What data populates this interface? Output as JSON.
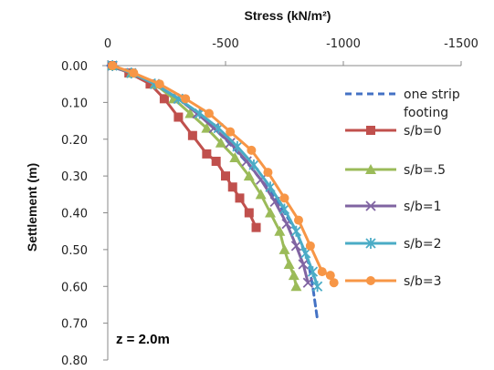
{
  "chart_data": {
    "type": "line",
    "title": "",
    "xlabel": "Stress (kN/m²)",
    "ylabel": "Settlement (m)",
    "xlim": [
      0,
      -1500
    ],
    "ylim": [
      0,
      0.8
    ],
    "x_ticks": [
      "0",
      "-500",
      "-1000",
      "-1500"
    ],
    "y_ticks": [
      "0.00",
      "0.10",
      "0.20",
      "0.30",
      "0.40",
      "0.50",
      "0.60",
      "0.70",
      "0.80"
    ],
    "x_axis_position": "top",
    "grid": false,
    "legend_position": "right",
    "annotation": "z = 2.0m",
    "series": [
      {
        "name": "one strip footing",
        "color": "#4472c4",
        "style": "dashed",
        "marker": "none",
        "x": [
          0,
          -100,
          -200,
          -300,
          -400,
          -500,
          -600,
          -700,
          -800,
          -850,
          -870,
          -890
        ],
        "y": [
          0,
          0.02,
          0.05,
          0.09,
          0.14,
          0.2,
          0.27,
          0.35,
          0.45,
          0.53,
          0.6,
          0.69
        ]
      },
      {
        "name": "s/b=0",
        "color": "#c0504d",
        "style": "solid",
        "marker": "square",
        "x": [
          -20,
          -90,
          -180,
          -240,
          -300,
          -360,
          -420,
          -460,
          -500,
          -530,
          -560,
          -600,
          -630
        ],
        "y": [
          0,
          0.02,
          0.05,
          0.09,
          0.14,
          0.19,
          0.24,
          0.26,
          0.3,
          0.33,
          0.36,
          0.4,
          0.44
        ]
      },
      {
        "name": "s/b=.5",
        "color": "#9bbb59",
        "style": "solid",
        "marker": "triangle",
        "x": [
          -20,
          -100,
          -200,
          -280,
          -350,
          -420,
          -480,
          -540,
          -600,
          -650,
          -690,
          -730,
          -750,
          -770,
          -790,
          -800
        ],
        "y": [
          0,
          0.02,
          0.05,
          0.09,
          0.13,
          0.17,
          0.21,
          0.25,
          0.3,
          0.35,
          0.4,
          0.45,
          0.5,
          0.54,
          0.57,
          0.6
        ]
      },
      {
        "name": "s/b=1",
        "color": "#8064a2",
        "style": "solid",
        "marker": "x",
        "x": [
          -20,
          -100,
          -200,
          -300,
          -380,
          -450,
          -520,
          -590,
          -650,
          -710,
          -760,
          -800,
          -830,
          -850
        ],
        "y": [
          0,
          0.02,
          0.05,
          0.09,
          0.13,
          0.17,
          0.21,
          0.26,
          0.31,
          0.37,
          0.43,
          0.49,
          0.54,
          0.59
        ]
      },
      {
        "name": "s/b=2",
        "color": "#4bacc6",
        "style": "solid",
        "marker": "asterisk",
        "x": [
          -20,
          -100,
          -200,
          -300,
          -390,
          -470,
          -550,
          -620,
          -690,
          -750,
          -800,
          -840,
          -870,
          -890
        ],
        "y": [
          0,
          0.02,
          0.05,
          0.09,
          0.13,
          0.17,
          0.22,
          0.27,
          0.33,
          0.39,
          0.45,
          0.51,
          0.56,
          0.6
        ]
      },
      {
        "name": "s/b=3",
        "color": "#f79646",
        "style": "solid",
        "marker": "circle",
        "x": [
          -20,
          -110,
          -220,
          -330,
          -430,
          -520,
          -610,
          -680,
          -750,
          -810,
          -860,
          -910,
          -945,
          -960
        ],
        "y": [
          0,
          0.02,
          0.05,
          0.09,
          0.13,
          0.18,
          0.23,
          0.29,
          0.36,
          0.42,
          0.49,
          0.56,
          0.57,
          0.59
        ]
      }
    ]
  }
}
